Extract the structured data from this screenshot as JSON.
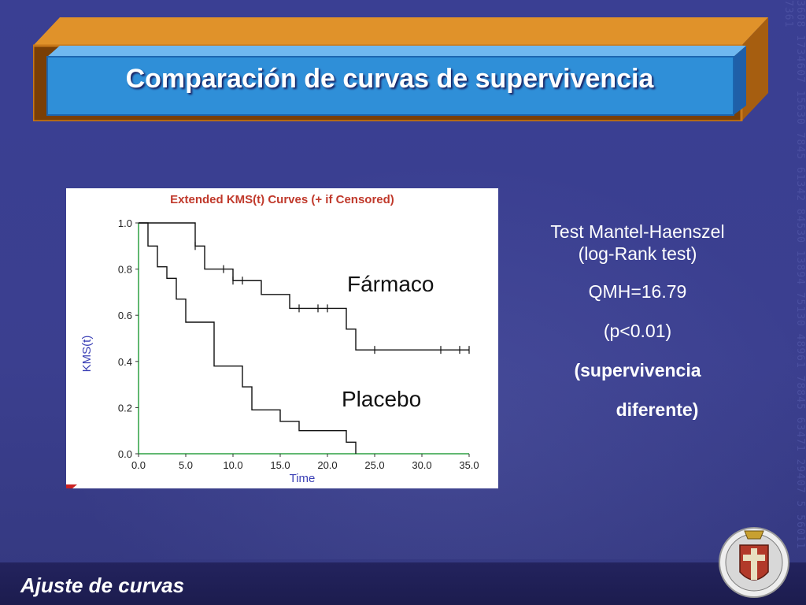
{
  "slide": {
    "title": "Comparación de curvas de supervivencia",
    "footer": "Ajuste de curvas",
    "bg_digits": "3608 1734607 15630 7845 61342 84530 13894 75130 48961 78845 63471 29407 5 56011 7361"
  },
  "test": {
    "line1": "Test Mantel-Haenszel",
    "line2": "(log-Rank test)",
    "line3": "QMH=16.79",
    "line4": "(p<0.01)",
    "line5": "(supervivencia",
    "line6": "diferente)"
  },
  "colors": {
    "background": "#3b3f8f",
    "title_outer": "#c8781a",
    "title_inner": "#2f8fd8",
    "chart_title": "#c0392b",
    "axis_label": "#3a3fb5",
    "axis": "#2ea043"
  },
  "chart_data": {
    "type": "line",
    "title": "Extended KMS(t) Curves (+ if Censored)",
    "xlabel": "Time",
    "ylabel": "KMS(t)",
    "xlim": [
      0,
      35
    ],
    "ylim": [
      0,
      1
    ],
    "x_ticks": [
      "0.0",
      "5.0",
      "10.0",
      "15.0",
      "20.0",
      "25.0",
      "30.0",
      "35.0"
    ],
    "y_ticks": [
      "0.0",
      "0.2",
      "0.4",
      "0.6",
      "0.8",
      "1.0"
    ],
    "step": true,
    "series": [
      {
        "name": "Fármaco",
        "x": [
          0,
          6,
          6,
          7,
          7,
          10,
          10,
          13,
          13,
          16,
          16,
          22,
          22,
          23,
          23,
          35
        ],
        "y": [
          1.0,
          1.0,
          0.9,
          0.9,
          0.8,
          0.8,
          0.75,
          0.75,
          0.69,
          0.69,
          0.63,
          0.63,
          0.54,
          0.54,
          0.45,
          0.45
        ],
        "censored": [
          6,
          9,
          10,
          11,
          17,
          19,
          20,
          25,
          32,
          34,
          35
        ]
      },
      {
        "name": "Placebo",
        "x": [
          0,
          1,
          1,
          2,
          2,
          3,
          3,
          4,
          4,
          5,
          5,
          8,
          8,
          11,
          11,
          12,
          12,
          15,
          15,
          17,
          17,
          22,
          22,
          23,
          23
        ],
        "y": [
          1.0,
          1.0,
          0.9,
          0.9,
          0.81,
          0.81,
          0.76,
          0.76,
          0.67,
          0.67,
          0.57,
          0.57,
          0.38,
          0.38,
          0.29,
          0.29,
          0.19,
          0.19,
          0.14,
          0.14,
          0.1,
          0.1,
          0.05,
          0.05,
          0.0
        ],
        "censored": []
      }
    ]
  }
}
